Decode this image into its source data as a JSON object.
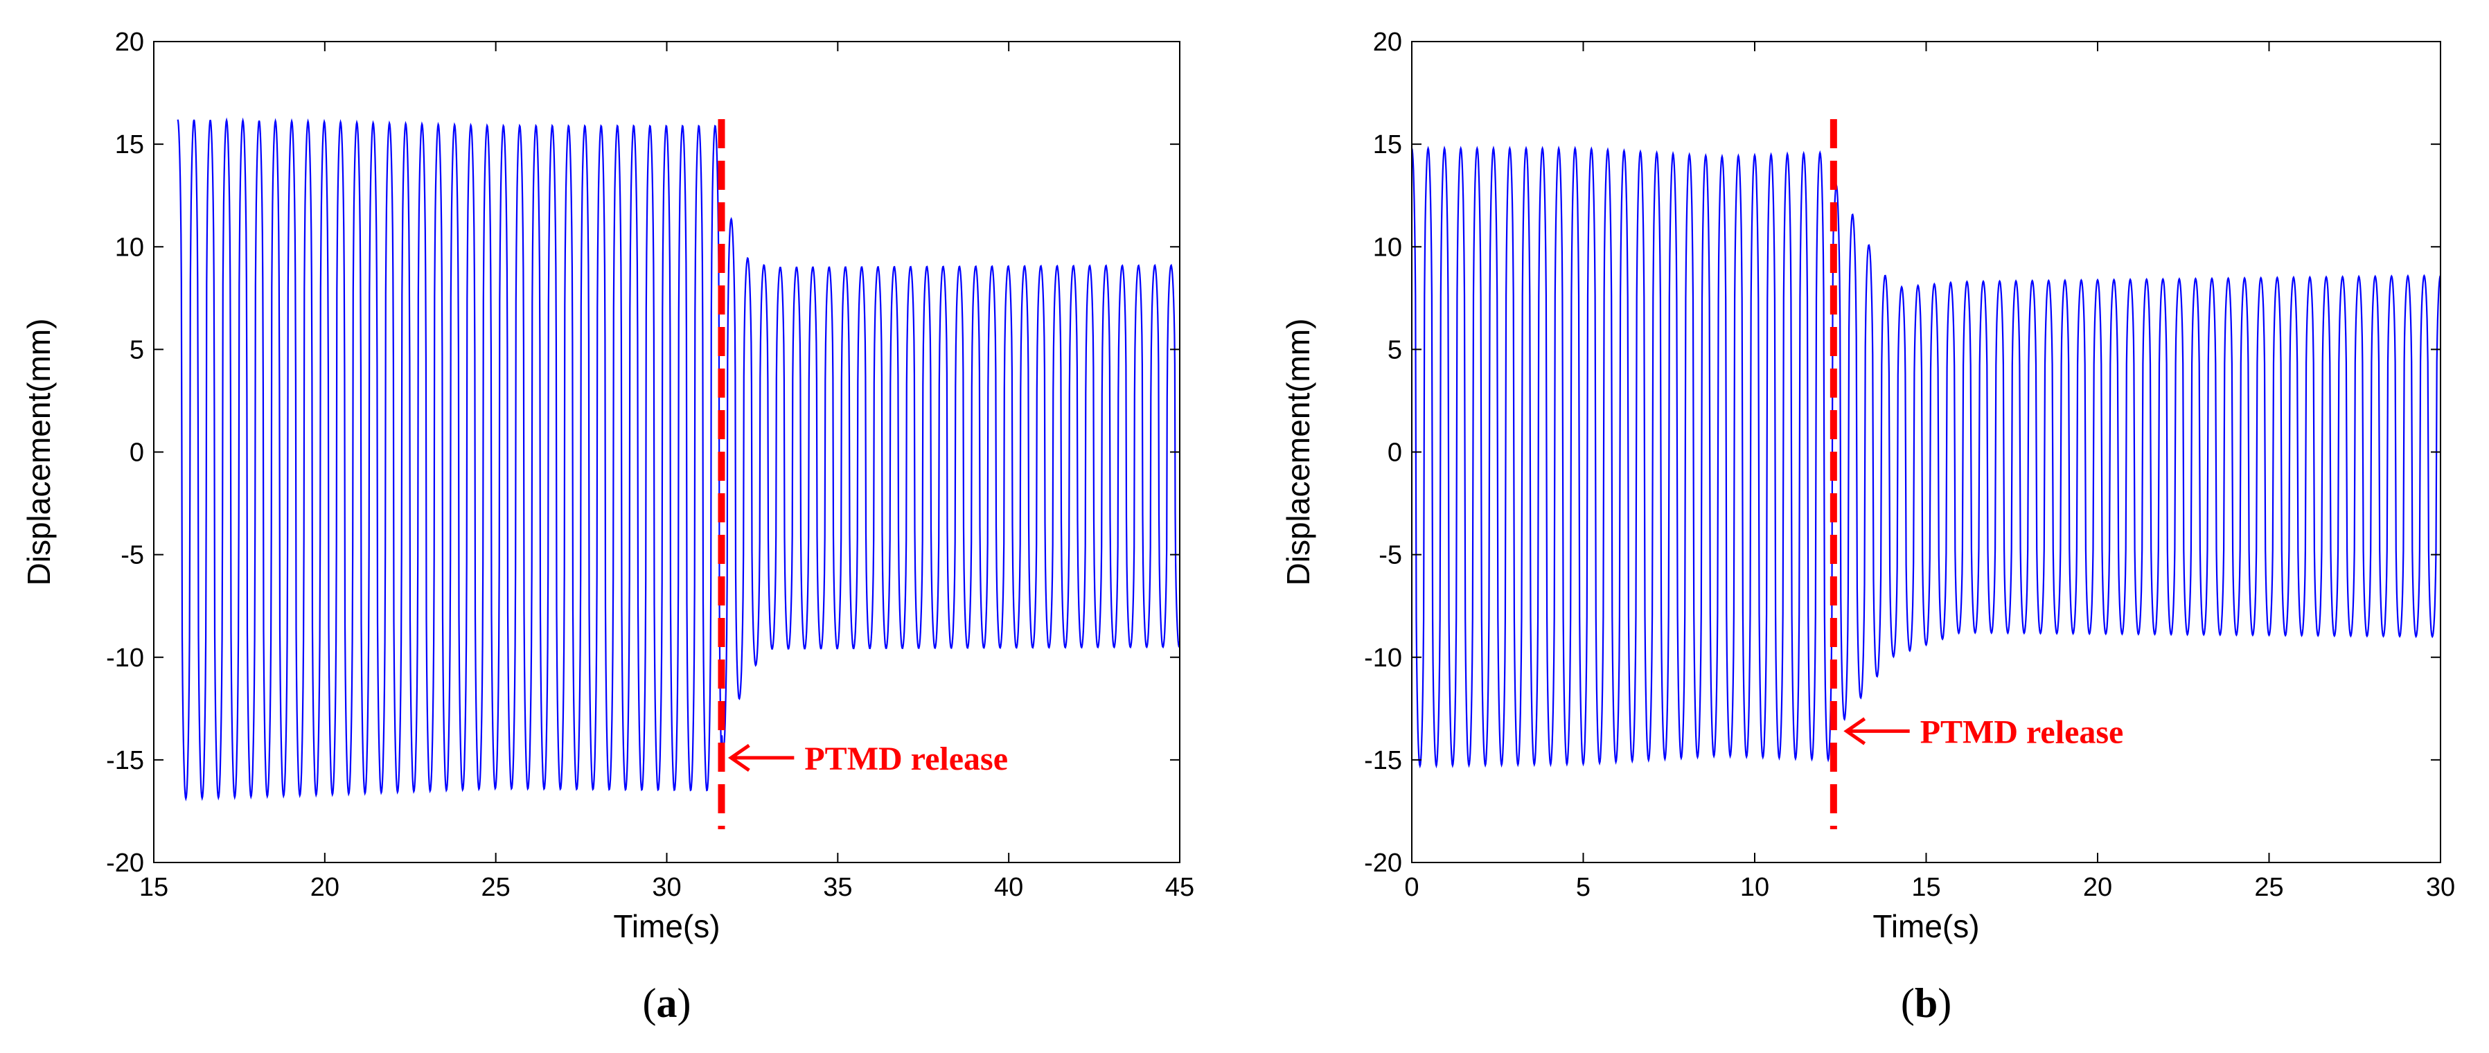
{
  "chart_data": [
    {
      "type": "line",
      "panel_label": "(a)",
      "panel_letter": "a",
      "xlabel": "Time(s)",
      "ylabel": "Displacement(mm)",
      "xlim": [
        15,
        45
      ],
      "ylim": [
        -20,
        20
      ],
      "xticks": [
        15,
        20,
        25,
        30,
        35,
        40,
        45
      ],
      "yticks": [
        -20,
        -15,
        -10,
        -5,
        0,
        5,
        10,
        15,
        20
      ],
      "grid": false,
      "line_color": "#0000ff",
      "signal": {
        "t_start": 15.7,
        "t_end": 45,
        "frequency_hz": 2.1,
        "release_time": 31.6,
        "before": {
          "upper": [
            [
              15.7,
              16.2
            ],
            [
              20,
              16.1
            ],
            [
              25,
              15.9
            ],
            [
              31.5,
              15.9
            ]
          ],
          "lower": [
            [
              15.7,
              -16.9
            ],
            [
              20,
              -16.7
            ],
            [
              25,
              -16.4
            ],
            [
              31.5,
              -16.5
            ]
          ]
        },
        "after": {
          "upper": [
            [
              31.7,
              12.2
            ],
            [
              32.3,
              9.5
            ],
            [
              33,
              9.0
            ],
            [
              45,
              9.1
            ]
          ],
          "lower": [
            [
              31.7,
              -14.5
            ],
            [
              32.3,
              -11.0
            ],
            [
              33,
              -9.6
            ],
            [
              45,
              -9.5
            ]
          ]
        }
      },
      "release_line": {
        "x": 31.6,
        "color": "#ff0000"
      },
      "annotation": {
        "text": "PTMD release",
        "x": 31.8,
        "y": -14.9,
        "color": "#ff0000"
      }
    },
    {
      "type": "line",
      "panel_label": "(b)",
      "panel_letter": "b",
      "xlabel": "Time(s)",
      "ylabel": "Displacement(mm)",
      "xlim": [
        0,
        30
      ],
      "ylim": [
        -20,
        20
      ],
      "xticks": [
        0,
        5,
        10,
        15,
        20,
        25,
        30
      ],
      "yticks": [
        -20,
        -15,
        -10,
        -5,
        0,
        5,
        10,
        15,
        20
      ],
      "grid": false,
      "line_color": "#0000ff",
      "signal": {
        "t_start": 0,
        "t_end": 30,
        "frequency_hz": 2.1,
        "release_time": 12.3,
        "before": {
          "upper": [
            [
              0,
              14.8
            ],
            [
              5,
              14.8
            ],
            [
              9,
              14.4
            ],
            [
              12.2,
              14.6
            ]
          ],
          "lower": [
            [
              0,
              -15.3
            ],
            [
              5,
              -15.2
            ],
            [
              9,
              -14.8
            ],
            [
              12.2,
              -15.0
            ]
          ]
        },
        "after": {
          "upper": [
            [
              12.4,
              13.0
            ],
            [
              14,
              8.0
            ],
            [
              16,
              8.3
            ],
            [
              30,
              8.6
            ]
          ],
          "lower": [
            [
              12.4,
              -13.5
            ],
            [
              14,
              -10.0
            ],
            [
              16,
              -8.8
            ],
            [
              30,
              -9.0
            ]
          ]
        }
      },
      "release_line": {
        "x": 12.3,
        "color": "#ff0000"
      },
      "annotation": {
        "text": "PTMD release",
        "x": 12.6,
        "y": -13.6,
        "color": "#ff0000"
      }
    }
  ]
}
